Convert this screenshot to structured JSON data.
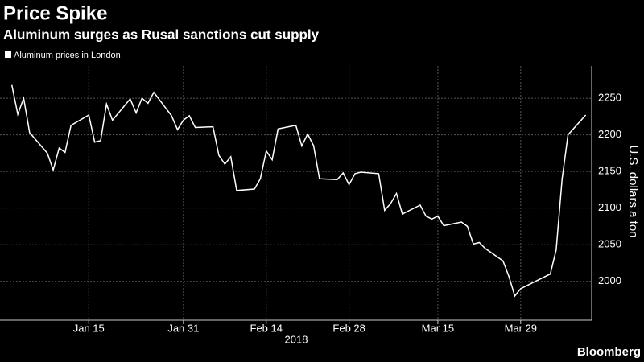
{
  "chart_data": {
    "type": "line",
    "title": "Price Spike",
    "subtitle": "Aluminum surges as Rusal sanctions cut supply",
    "y_label": "U.S. dollars a ton",
    "x_label": "2018",
    "credit": "Bloomberg",
    "series": [
      {
        "name": "Aluminum prices in London",
        "color": "#ffffff",
        "values": [
          2268,
          2228,
          2250,
          2203,
          2175,
          2152,
          2182,
          2176,
          2213,
          2227,
          2190,
          2192,
          2242,
          2220,
          2249,
          2230,
          2250,
          2243,
          2258,
          2226,
          2207,
          2220,
          2226,
          2210,
          2211,
          2172,
          2160,
          2170,
          2124,
          2126,
          2140,
          2178,
          2166,
          2208,
          2213,
          2185,
          2201,
          2185,
          2140,
          2139,
          2148,
          2132,
          2147,
          2149,
          2147,
          2097,
          2106,
          2120,
          2092,
          2104,
          2089,
          2085,
          2089,
          2076,
          2081,
          2075,
          2051,
          2053,
          2045,
          2028,
          2007,
          1980,
          1990,
          2010,
          2043,
          2140,
          2200,
          2227
        ]
      }
    ],
    "x": [
      "2018-01-02",
      "2018-01-03",
      "2018-01-04",
      "2018-01-05",
      "2018-01-08",
      "2018-01-09",
      "2018-01-10",
      "2018-01-11",
      "2018-01-12",
      "2018-01-15",
      "2018-01-16",
      "2018-01-17",
      "2018-01-18",
      "2018-01-19",
      "2018-01-22",
      "2018-01-23",
      "2018-01-24",
      "2018-01-25",
      "2018-01-26",
      "2018-01-29",
      "2018-01-30",
      "2018-01-31",
      "2018-02-01",
      "2018-02-02",
      "2018-02-05",
      "2018-02-06",
      "2018-02-07",
      "2018-02-08",
      "2018-02-09",
      "2018-02-12",
      "2018-02-13",
      "2018-02-14",
      "2018-02-15",
      "2018-02-16",
      "2018-02-19",
      "2018-02-20",
      "2018-02-21",
      "2018-02-22",
      "2018-02-23",
      "2018-02-26",
      "2018-02-27",
      "2018-02-28",
      "2018-03-01",
      "2018-03-02",
      "2018-03-05",
      "2018-03-06",
      "2018-03-07",
      "2018-03-08",
      "2018-03-09",
      "2018-03-12",
      "2018-03-13",
      "2018-03-14",
      "2018-03-15",
      "2018-03-16",
      "2018-03-19",
      "2018-03-20",
      "2018-03-21",
      "2018-03-22",
      "2018-03-23",
      "2018-03-26",
      "2018-03-27",
      "2018-03-28",
      "2018-03-29",
      "2018-04-03",
      "2018-04-04",
      "2018-04-05",
      "2018-04-06",
      "2018-04-09"
    ],
    "xlim": [
      "2017-12-31",
      "2018-04-10"
    ],
    "xticks": [
      {
        "value": "2018-01-15",
        "label": "Jan 15"
      },
      {
        "value": "2018-01-31",
        "label": "Jan 31"
      },
      {
        "value": "2018-02-14",
        "label": "Feb 14"
      },
      {
        "value": "2018-02-28",
        "label": "Feb 28"
      },
      {
        "value": "2018-03-15",
        "label": "Mar 15"
      },
      {
        "value": "2018-03-29",
        "label": "Mar 29"
      }
    ],
    "ylim": [
      1947,
      2294
    ],
    "yticks": [
      2000,
      2050,
      2100,
      2150,
      2200,
      2250
    ],
    "grid": true
  }
}
